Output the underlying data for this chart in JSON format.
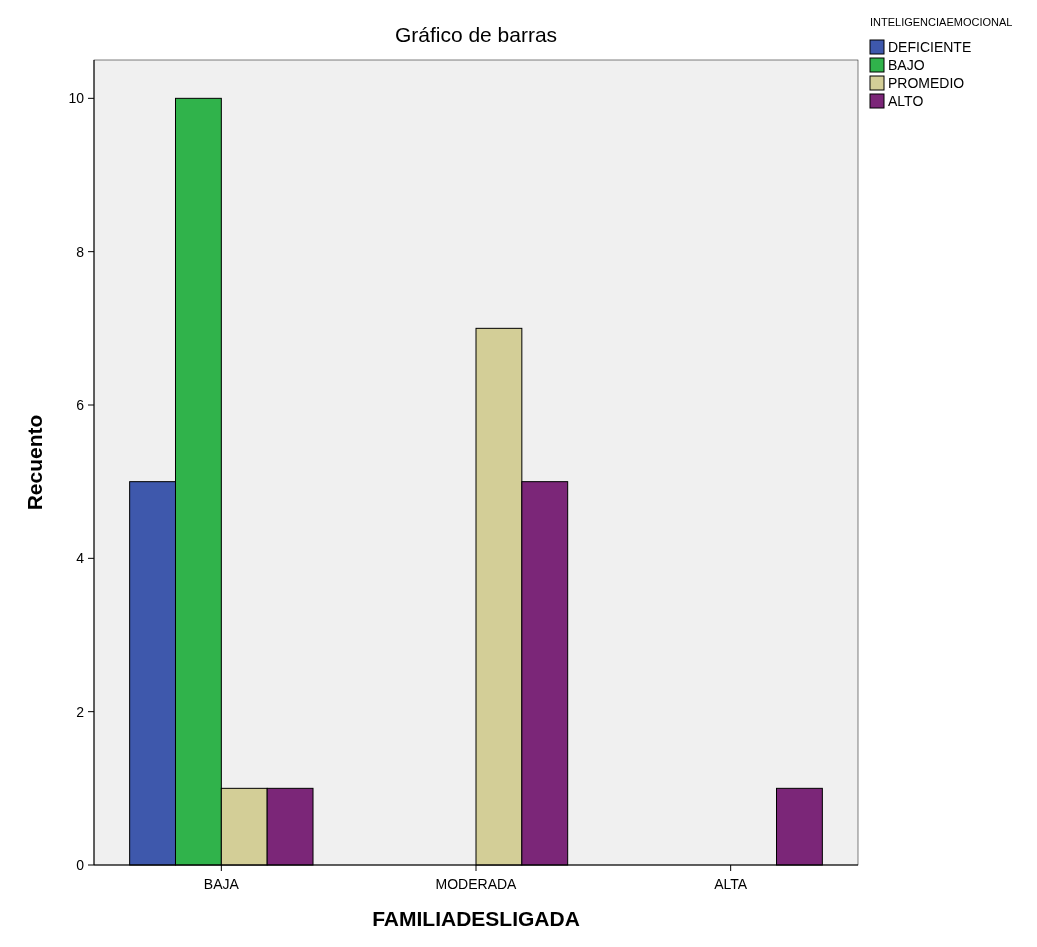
{
  "chart_data": {
    "type": "bar",
    "title": "Gráfico de barras",
    "xlabel": "FAMILIADESLIGADA",
    "ylabel": "Recuento",
    "legend_title": "INTELIGENCIAEMOCIONAL",
    "categories": [
      "BAJA",
      "MODERADA",
      "ALTA"
    ],
    "series": [
      {
        "name": "DEFICIENTE",
        "color": "#3e58ac",
        "values": [
          5,
          null,
          null
        ]
      },
      {
        "name": "BAJO",
        "color": "#30b34b",
        "values": [
          10,
          null,
          null
        ]
      },
      {
        "name": "PROMEDIO",
        "color": "#d3ce97",
        "values": [
          1,
          7,
          null
        ]
      },
      {
        "name": "ALTO",
        "color": "#7b2678",
        "values": [
          1,
          5,
          1
        ]
      }
    ],
    "ylim": [
      0,
      10.5
    ],
    "yticks": [
      0,
      2,
      4,
      6,
      8,
      10
    ],
    "legend": "top right",
    "grid": false
  }
}
